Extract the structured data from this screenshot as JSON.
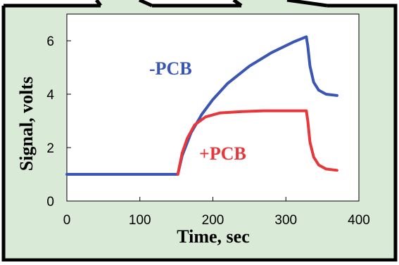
{
  "chart_data": {
    "type": "line",
    "xlabel": "Time, sec",
    "ylabel": "Signal, volts",
    "xlim": [
      0,
      400
    ],
    "ylim": [
      0,
      7
    ],
    "xticks": [
      0,
      100,
      200,
      300,
      400
    ],
    "yticks": [
      0,
      2,
      4,
      6
    ],
    "grid": false,
    "series": [
      {
        "name": "-PCB",
        "color": "#3a55b4",
        "x": [
          0,
          152,
          158,
          170,
          185,
          200,
          220,
          250,
          280,
          310,
          328,
          330,
          333,
          338,
          345,
          355,
          370
        ],
        "y": [
          1.0,
          1.0,
          1.7,
          2.55,
          3.25,
          3.8,
          4.4,
          5.05,
          5.55,
          5.95,
          6.15,
          5.8,
          5.05,
          4.45,
          4.15,
          4.0,
          3.95
        ]
      },
      {
        "name": "+PCB",
        "color": "#e8373a",
        "x": [
          152,
          158,
          165,
          175,
          190,
          210,
          240,
          270,
          300,
          328,
          330,
          333,
          338,
          345,
          355,
          370
        ],
        "y": [
          1.0,
          1.8,
          2.35,
          2.85,
          3.15,
          3.3,
          3.35,
          3.38,
          3.38,
          3.38,
          3.0,
          2.2,
          1.65,
          1.35,
          1.2,
          1.15
        ]
      }
    ],
    "annotations": [
      {
        "text": "-PCB",
        "color": "#3a55b4"
      },
      {
        "text": "+PCB",
        "color": "#e8373a"
      }
    ]
  },
  "colors": {
    "panel_bg": "#d9ead6",
    "panel_border": "#000000",
    "plot_bg": "#ffffff"
  }
}
